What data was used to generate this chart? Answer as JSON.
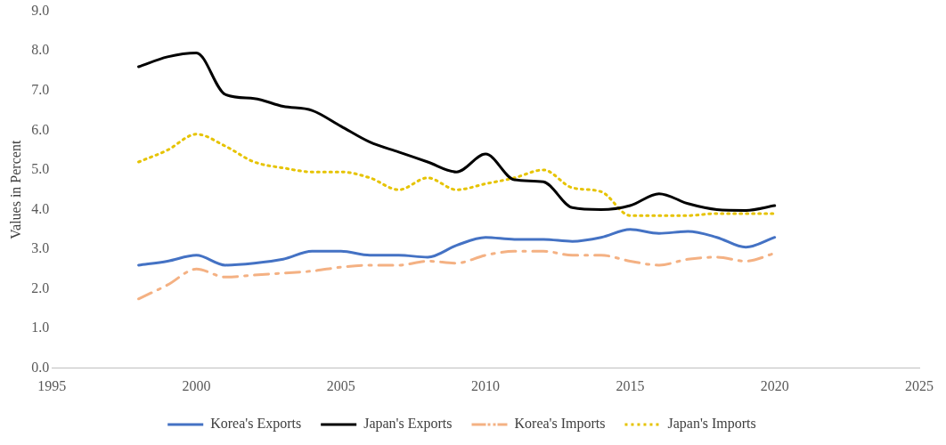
{
  "chart_data": {
    "type": "line",
    "ylabel": "Values in Percent",
    "x": [
      1998,
      1999,
      2000,
      2001,
      2002,
      2003,
      2004,
      2005,
      2006,
      2007,
      2008,
      2009,
      2010,
      2011,
      2012,
      2013,
      2014,
      2015,
      2016,
      2017,
      2018,
      2019,
      2020
    ],
    "series": [
      {
        "name": "Korea's Exports",
        "color": "#4472c4",
        "line_style": "solid",
        "values": [
          2.6,
          2.7,
          2.85,
          2.6,
          2.65,
          2.75,
          2.95,
          2.95,
          2.85,
          2.85,
          2.8,
          3.1,
          3.3,
          3.25,
          3.25,
          3.2,
          3.3,
          3.5,
          3.4,
          3.45,
          3.3,
          3.05,
          3.3
        ]
      },
      {
        "name": "Japan's Exports",
        "color": "#000000",
        "line_style": "solid",
        "values": [
          7.6,
          7.85,
          7.95,
          6.9,
          6.8,
          6.6,
          6.5,
          6.1,
          5.7,
          5.45,
          5.2,
          4.95,
          5.4,
          4.75,
          4.7,
          4.05,
          4.0,
          4.1,
          4.4,
          4.15,
          4.0,
          3.98,
          4.1
        ]
      },
      {
        "name": "Korea's Imports",
        "color": "#f4b183",
        "line_style": "dashdot",
        "values": [
          1.75,
          2.1,
          2.5,
          2.3,
          2.35,
          2.4,
          2.45,
          2.55,
          2.6,
          2.6,
          2.7,
          2.65,
          2.85,
          2.95,
          2.95,
          2.85,
          2.85,
          2.7,
          2.6,
          2.75,
          2.8,
          2.7,
          2.9
        ]
      },
      {
        "name": "Japan's Imports",
        "color": "#e6c300",
        "line_style": "dotted",
        "values": [
          5.2,
          5.5,
          5.9,
          5.6,
          5.2,
          5.05,
          4.95,
          4.95,
          4.8,
          4.5,
          4.8,
          4.5,
          4.65,
          4.8,
          5.0,
          4.55,
          4.45,
          3.85,
          3.85,
          3.85,
          3.9,
          3.9,
          3.9
        ]
      }
    ],
    "xlim": [
      1995,
      2025
    ],
    "xticks": [
      1995,
      2000,
      2005,
      2010,
      2015,
      2020,
      2025
    ],
    "ylim": [
      0,
      9
    ],
    "yticks": [
      {
        "value": 0,
        "label": "0.0"
      },
      {
        "value": 1,
        "label": "1.0"
      },
      {
        "value": 2,
        "label": "2.0"
      },
      {
        "value": 3,
        "label": "3.0"
      },
      {
        "value": 4,
        "label": "4.0"
      },
      {
        "value": 5,
        "label": "5.0"
      },
      {
        "value": 6,
        "label": "6.0"
      },
      {
        "value": 7,
        "label": "7.0"
      },
      {
        "value": 8,
        "label": "8.0"
      },
      {
        "value": 9,
        "label": "9.0"
      }
    ],
    "grid": false,
    "legend": "bottom",
    "marker": "none"
  }
}
